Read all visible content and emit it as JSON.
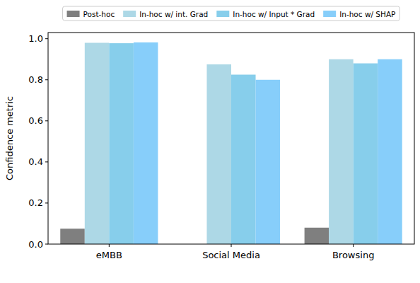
{
  "chart_data": {
    "type": "bar",
    "y_label": "Confidence metric",
    "categories": [
      "eMBB",
      "Social Media",
      "Browsing"
    ],
    "series": [
      {
        "name": "Post-hoc",
        "color": "#7f7f7f",
        "values": [
          0.075,
          0,
          0.08
        ]
      },
      {
        "name": "In-hoc w/ int. Grad",
        "color": "#add8e6",
        "values": [
          0.98,
          0.875,
          0.9
        ]
      },
      {
        "name": "In-hoc w/ Input * Grad",
        "color": "#87ceeb",
        "values": [
          0.978,
          0.825,
          0.88
        ]
      },
      {
        "name": "In-hoc w/ SHAP",
        "color": "#87cefa",
        "values": [
          0.982,
          0.8,
          0.9
        ]
      }
    ],
    "ylim": [
      0,
      1.03
    ],
    "yticks": [
      {
        "value": 0,
        "label": "0.0"
      },
      0.2,
      0.4,
      0.6,
      0.8,
      {
        "value": 1,
        "label": "1.0"
      }
    ],
    "grid": false,
    "legend": "top"
  }
}
